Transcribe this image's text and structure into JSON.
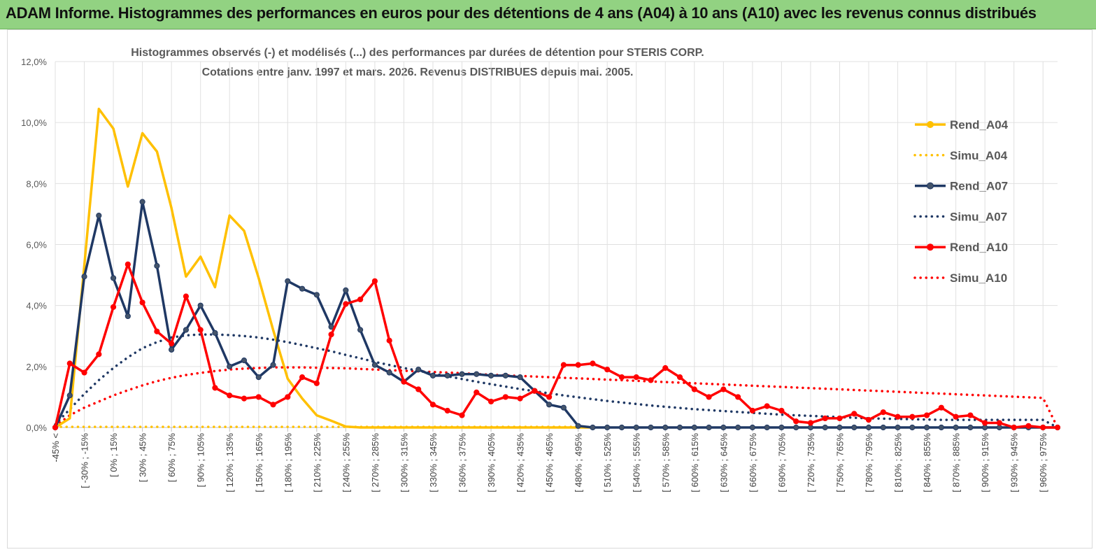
{
  "header": {
    "title": "ADAM Informe. Histogrammes des performances en euros pour des détentions de 4 ans (A04) à 10 ans (A10) avec les revenus connus distribués"
  },
  "chart_data": {
    "type": "line",
    "title_line1": "Histogrammes observés (-) et modélisés (...) des performances par durées de détention pour STERIS CORP.",
    "title_line2": "Cotations entre janv. 1997 et mars. 2026. Revenus DISTRIBUES depuis mai. 2005.",
    "xlabel": "",
    "ylabel": "",
    "ylim": [
      0,
      12
    ],
    "yticks": [
      "0,0%",
      "2,0%",
      "4,0%",
      "6,0%",
      "8,0%",
      "10,0%",
      "12,0%"
    ],
    "grid": true,
    "legend_position": "right",
    "x_tick_labels": [
      "-45% <",
      "[ -30% ; -15%",
      "[ 0% ; 15%",
      "[ 30% ; 45%",
      "[ 60% ; 75%",
      "[ 90% ; 105%",
      "[ 120% ; 135%",
      "[ 150% ; 165%",
      "[ 180% ; 195%",
      "[ 210% ; 225%",
      "[ 240% ; 255%",
      "[ 270% ; 285%",
      "[ 300% ; 315%",
      "[ 330% ; 345%",
      "[ 360% ; 375%",
      "[ 390% ; 405%",
      "[ 420% ; 435%",
      "[ 450% ; 465%",
      "[ 480% ; 495%",
      "[ 510% ; 525%",
      "[ 540% ; 555%",
      "[ 570% ; 585%",
      "[ 600% ; 615%",
      "[ 630% ; 645%",
      "[ 660% ; 675%",
      "[ 690% ; 705%",
      "[ 720% ; 735%",
      "[ 750% ; 765%",
      "[ 780% ; 795%",
      "[ 810% ; 825%",
      "[ 840% ; 855%",
      "[ 870% ; 885%",
      "[ 900% ; 915%",
      "[ 930% ; 945%",
      "[ 960% ; 975%"
    ],
    "series": [
      {
        "name": "Rend_A04",
        "style": "solid",
        "color": "#ffc000",
        "markers": false,
        "values": [
          0.0,
          0.3,
          5.3,
          10.45,
          9.8,
          7.9,
          9.65,
          9.05,
          7.2,
          4.95,
          5.6,
          4.6,
          6.95,
          6.45,
          4.9,
          3.2,
          1.6,
          0.95,
          0.4,
          0.22,
          0.03,
          0.0,
          0.0,
          0.0,
          0.0,
          0.0,
          0.0,
          0.0,
          0.0,
          0.0,
          0.0,
          0.0,
          0.0,
          0.0,
          0.0,
          0.0,
          0.0,
          0.0
        ]
      },
      {
        "name": "Simu_A04",
        "style": "dotted",
        "color": "#ffc000",
        "values": [
          0.02,
          0.02,
          0.02,
          0.02,
          0.02,
          0.02,
          0.02,
          0.02,
          0.02,
          0.02,
          0.02,
          0.02,
          0.02,
          0.02,
          0.02,
          0.02,
          0.02,
          0.02,
          0.02,
          0.02,
          0.02,
          0.02,
          0.02,
          0.02,
          0.02,
          0.02,
          0.02,
          0.02,
          0.02,
          0.02,
          0.02,
          0.02,
          0.02,
          0.02,
          0.02,
          0.02,
          0.02,
          0.02
        ]
      },
      {
        "name": "Rend_A07",
        "style": "solid",
        "color": "#1f3864",
        "markers": true,
        "values": [
          0.0,
          1.05,
          4.95,
          6.95,
          4.9,
          3.65,
          7.4,
          5.3,
          2.55,
          3.2,
          4.0,
          3.1,
          2.0,
          2.2,
          1.65,
          2.05,
          4.8,
          4.55,
          4.35,
          3.3,
          4.5,
          3.2,
          2.05,
          1.8,
          1.5,
          1.9,
          1.7,
          1.7,
          1.75,
          1.75,
          1.7,
          1.7,
          1.65,
          1.2,
          0.75,
          0.65,
          0.05,
          0.0,
          0.0,
          0.0,
          0.0,
          0.0,
          0.0,
          0.0,
          0.0,
          0.0,
          0.0,
          0.0,
          0.0,
          0.0,
          0.0,
          0.0,
          0.0,
          0.0,
          0.0,
          0.0,
          0.0,
          0.0,
          0.0,
          0.0,
          0.0,
          0.0,
          0.0,
          0.0,
          0.0,
          0.0,
          0.0,
          0.0,
          0.0,
          0.0
        ]
      },
      {
        "name": "Simu_A07",
        "style": "dotted",
        "color": "#1f3864",
        "values": [
          0.1,
          0.6,
          1.1,
          1.55,
          1.95,
          2.3,
          2.6,
          2.8,
          2.95,
          3.02,
          3.05,
          3.05,
          3.03,
          3.0,
          2.95,
          2.88,
          2.8,
          2.7,
          2.6,
          2.5,
          2.38,
          2.27,
          2.15,
          2.05,
          1.95,
          1.86,
          1.77,
          1.68,
          1.59,
          1.5,
          1.42,
          1.34,
          1.26,
          1.19,
          1.12,
          1.05,
          0.99,
          0.93,
          0.87,
          0.82,
          0.77,
          0.72,
          0.68,
          0.64,
          0.6,
          0.57,
          0.54,
          0.51,
          0.48,
          0.45,
          0.42,
          0.4,
          0.38,
          0.36,
          0.34,
          0.32,
          0.3,
          0.29,
          0.28,
          0.27,
          0.26,
          0.25,
          0.25,
          0.25,
          0.25,
          0.25,
          0.25,
          0.25,
          0.25,
          0.0
        ]
      },
      {
        "name": "Rend_A10",
        "style": "solid",
        "color": "#ff0000",
        "markers": true,
        "values": [
          0.0,
          2.1,
          1.8,
          2.4,
          3.95,
          5.35,
          4.1,
          3.15,
          2.75,
          4.3,
          3.2,
          1.3,
          1.05,
          0.95,
          1.0,
          0.75,
          1.0,
          1.65,
          1.45,
          3.05,
          4.05,
          4.2,
          4.8,
          2.85,
          1.5,
          1.25,
          0.75,
          0.55,
          0.4,
          1.15,
          0.85,
          1.0,
          0.95,
          1.2,
          1.0,
          2.05,
          2.05,
          2.1,
          1.9,
          1.65,
          1.65,
          1.55,
          1.95,
          1.65,
          1.25,
          1.0,
          1.25,
          1.0,
          0.55,
          0.7,
          0.55,
          0.2,
          0.15,
          0.3,
          0.3,
          0.45,
          0.25,
          0.5,
          0.35,
          0.35,
          0.4,
          0.65,
          0.35,
          0.4,
          0.15,
          0.15,
          0.0,
          0.05,
          0.0,
          0.0
        ]
      },
      {
        "name": "Simu_A10",
        "style": "dotted",
        "color": "#ff0000",
        "values": [
          0.05,
          0.4,
          0.65,
          0.85,
          1.05,
          1.22,
          1.38,
          1.52,
          1.63,
          1.72,
          1.79,
          1.85,
          1.9,
          1.93,
          1.95,
          1.97,
          1.97,
          1.97,
          1.96,
          1.95,
          1.94,
          1.92,
          1.9,
          1.88,
          1.86,
          1.84,
          1.82,
          1.8,
          1.78,
          1.75,
          1.73,
          1.71,
          1.69,
          1.67,
          1.65,
          1.63,
          1.61,
          1.59,
          1.57,
          1.55,
          1.53,
          1.51,
          1.49,
          1.47,
          1.45,
          1.43,
          1.41,
          1.39,
          1.37,
          1.35,
          1.33,
          1.31,
          1.29,
          1.27,
          1.25,
          1.23,
          1.21,
          1.19,
          1.17,
          1.15,
          1.13,
          1.11,
          1.09,
          1.07,
          1.05,
          1.03,
          1.01,
          0.99,
          0.97,
          0.0
        ]
      }
    ]
  }
}
